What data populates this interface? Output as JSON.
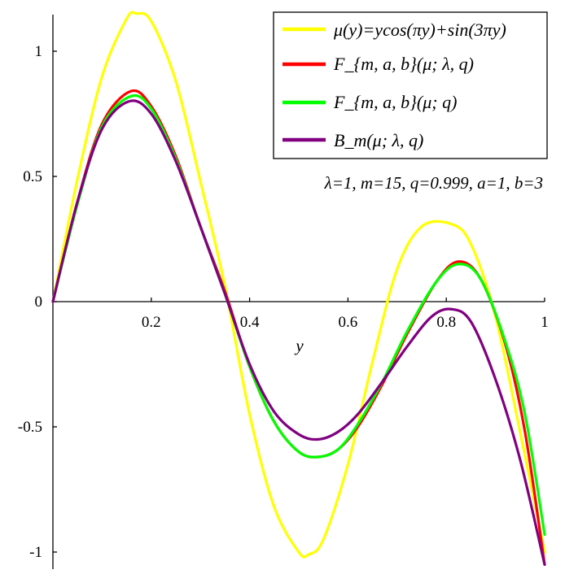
{
  "chart_data": {
    "type": "line",
    "xlabel": "y",
    "ylabel": "",
    "xlim": [
      0,
      1
    ],
    "ylim": [
      -1.05,
      1.15
    ],
    "xticks": [
      0.2,
      0.4,
      0.6,
      0.8,
      1
    ],
    "xtick_labels": [
      "0.2",
      "0.4",
      "0.6",
      "0.8",
      "1"
    ],
    "yticks": [
      1,
      0.5,
      0,
      -0.5,
      -1
    ],
    "ytick_labels": [
      "1",
      "0.5",
      "0",
      "-0.5",
      "-1"
    ],
    "legend_placement": "top-right",
    "annotation": "λ=1, m=15, q=0.999, a=1, b=3",
    "series": [
      {
        "name": "μ(y)=ycos(πy)+sin(3πy)",
        "color": "#ffff00",
        "x": [
          0,
          0.05,
          0.1,
          0.15,
          0.17,
          0.2,
          0.25,
          0.3,
          0.35,
          0.4,
          0.45,
          0.5,
          0.52,
          0.55,
          0.6,
          0.65,
          0.7,
          0.75,
          0.81,
          0.85,
          0.9,
          0.95,
          1
        ],
        "y": [
          0,
          0.49,
          0.9,
          1.13,
          1.15,
          1.12,
          0.88,
          0.48,
          0.06,
          -0.45,
          -0.82,
          -1.0,
          -1.01,
          -0.95,
          -0.65,
          -0.24,
          0.13,
          0.3,
          0.31,
          0.23,
          -0.06,
          -0.52,
          -1.0
        ]
      },
      {
        "name": "F_{m, a, b}(μ; λ, q)",
        "color": "#ff0000",
        "x": [
          0,
          0.05,
          0.1,
          0.158,
          0.2,
          0.25,
          0.3,
          0.35,
          0.4,
          0.45,
          0.5,
          0.54,
          0.58,
          0.62,
          0.67,
          0.72,
          0.78,
          0.825,
          0.87,
          0.92,
          0.96,
          1
        ],
        "y": [
          0,
          0.4,
          0.71,
          0.84,
          0.78,
          0.58,
          0.3,
          0.04,
          -0.26,
          -0.48,
          -0.6,
          -0.62,
          -0.59,
          -0.5,
          -0.33,
          -0.13,
          0.08,
          0.16,
          0.09,
          -0.17,
          -0.52,
          -1.05
        ]
      },
      {
        "name": "F_{m, a, b}(μ; q)",
        "color": "#00ff00",
        "x": [
          0,
          0.05,
          0.1,
          0.158,
          0.2,
          0.25,
          0.3,
          0.35,
          0.4,
          0.45,
          0.5,
          0.54,
          0.58,
          0.62,
          0.67,
          0.72,
          0.78,
          0.825,
          0.87,
          0.92,
          0.96,
          1
        ],
        "y": [
          0,
          0.39,
          0.7,
          0.82,
          0.77,
          0.57,
          0.3,
          0.03,
          -0.26,
          -0.48,
          -0.6,
          -0.62,
          -0.59,
          -0.49,
          -0.32,
          -0.12,
          0.08,
          0.15,
          0.09,
          -0.16,
          -0.45,
          -0.93
        ]
      },
      {
        "name": "B_m(μ; λ, q)",
        "color": "#800080",
        "x": [
          0,
          0.05,
          0.1,
          0.155,
          0.2,
          0.25,
          0.3,
          0.35,
          0.4,
          0.45,
          0.5,
          0.54,
          0.58,
          0.62,
          0.67,
          0.72,
          0.77,
          0.81,
          0.85,
          0.9,
          0.95,
          1
        ],
        "y": [
          0,
          0.4,
          0.69,
          0.8,
          0.75,
          0.56,
          0.3,
          0.03,
          -0.25,
          -0.44,
          -0.53,
          -0.55,
          -0.52,
          -0.45,
          -0.32,
          -0.18,
          -0.06,
          -0.03,
          -0.08,
          -0.31,
          -0.63,
          -1.05
        ]
      }
    ]
  }
}
